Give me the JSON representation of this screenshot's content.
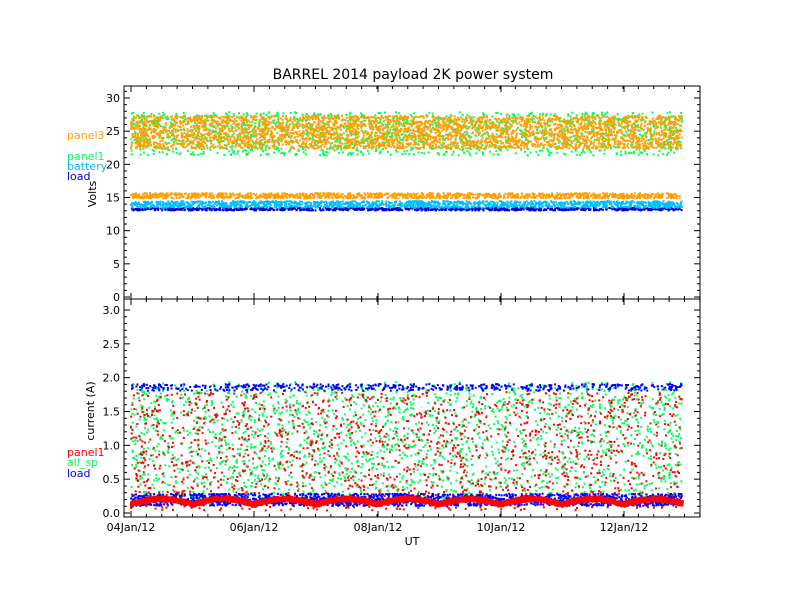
{
  "chart_data": [
    {
      "type": "scatter",
      "title": "BARREL 2014 payload 2K power system",
      "xlabel": "",
      "ylabel": "Volts",
      "ylim": [
        0,
        32
      ],
      "yticks": [
        "0",
        "5",
        "10",
        "15",
        "20",
        "25",
        "30"
      ],
      "xlim": [
        "2012-01-04T00:00",
        "2012-01-13T12:00"
      ],
      "legend_position": "left",
      "series": [
        {
          "name": "panel3",
          "color": "#ff9f00",
          "band": [
            [
              21.5,
              28
            ],
            [
              15,
              15.8
            ]
          ]
        },
        {
          "name": "panel1",
          "color": "#00ff5a",
          "band": [
            [
              21.5,
              28
            ]
          ]
        },
        {
          "name": "battery",
          "color": "#00bfff",
          "band": [
            [
              13.6,
              14.6
            ]
          ]
        },
        {
          "name": "load",
          "color": "#0000cd",
          "band": [
            [
              13.2,
              13.6
            ]
          ]
        }
      ]
    },
    {
      "type": "scatter",
      "title": "",
      "xlabel": "UT",
      "ylabel": "current (A)",
      "ylim": [
        0,
        3
      ],
      "yticks": [
        "0.0",
        "0.5",
        "1.0",
        "1.5",
        "2.0",
        "2.5",
        "3.0"
      ],
      "xlim": [
        "2012-01-04T00:00",
        "2012-01-13T12:00"
      ],
      "xticks": [
        "04Jan/12",
        "06Jan/12",
        "08Jan/12",
        "10Jan/12",
        "12Jan/12"
      ],
      "legend_position": "left",
      "series": [
        {
          "name": "panel1",
          "color": "#ff0000",
          "band": [
            [
              0.05,
              1.9
            ]
          ]
        },
        {
          "name": "all_sp",
          "color": "#00ff5a",
          "band": [
            [
              0.15,
              2.0
            ]
          ]
        },
        {
          "name": "load",
          "color": "#0000ff",
          "band": [
            [
              0.12,
              0.3
            ],
            [
              1.82,
              1.92
            ]
          ]
        }
      ]
    }
  ]
}
